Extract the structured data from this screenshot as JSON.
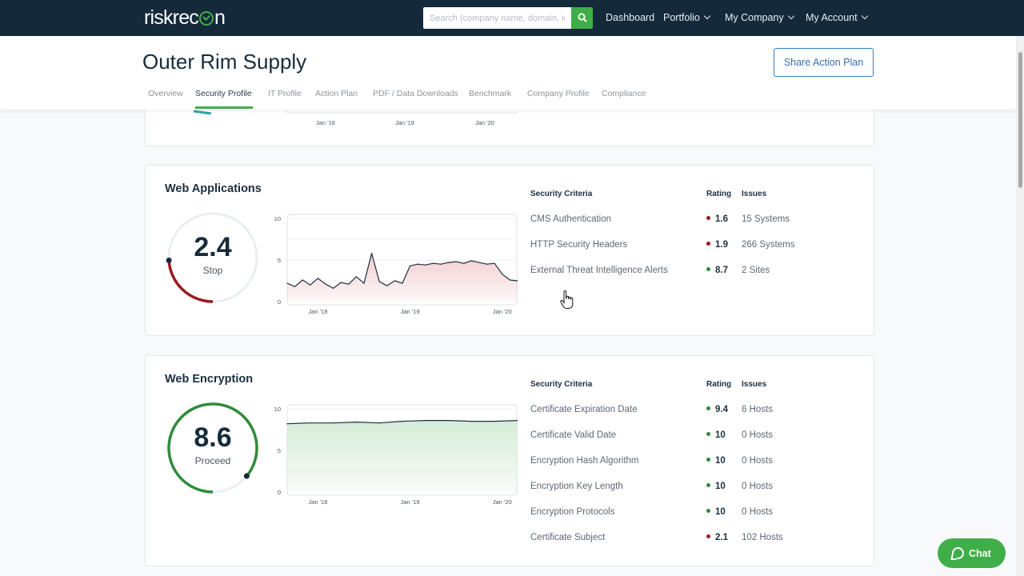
{
  "app": {
    "logo": "riskrecon"
  },
  "topnav": {
    "search_placeholder": "Search (company name, domain, id)",
    "dashboard": "Dashboard",
    "portfolio": "Portfolio",
    "my_company": "My Company",
    "my_account": "My Account"
  },
  "header": {
    "company_name": "Outer Rim Supply",
    "share_button": "Share Action Plan",
    "tabs": [
      {
        "label": "Overview"
      },
      {
        "label": "Security Profile",
        "active": true
      },
      {
        "label": "IT Profile"
      },
      {
        "label": "Action Plan"
      },
      {
        "label": "PDF / Data Downloads"
      },
      {
        "label": "Benchmark"
      },
      {
        "label": "Company Profile"
      },
      {
        "label": "Compliance"
      }
    ]
  },
  "table_headers": {
    "criteria": "Security Criteria",
    "rating": "Rating",
    "issues": "Issues"
  },
  "prev_card": {
    "x_ticks": [
      "Jan '18",
      "Jan '19",
      "Jan '20"
    ]
  },
  "web_applications": {
    "title": "Web Applications",
    "score": "2.4",
    "score_value": 2.4,
    "verdict": "Stop",
    "rows": [
      {
        "criteria": "CMS Authentication",
        "rating": "1.6",
        "status": "bad",
        "issues": "15 Systems"
      },
      {
        "criteria": "HTTP Security Headers",
        "rating": "1.9",
        "status": "bad",
        "issues": "266 Systems"
      },
      {
        "criteria": "External Threat Intelligence Alerts",
        "rating": "8.7",
        "status": "good",
        "issues": "2 Sites"
      }
    ]
  },
  "web_encryption": {
    "title": "Web Encryption",
    "score": "8.6",
    "score_value": 8.6,
    "verdict": "Proceed",
    "rows": [
      {
        "criteria": "Certificate Expiration Date",
        "rating": "9.4",
        "status": "good",
        "issues": "6 Hosts"
      },
      {
        "criteria": "Certificate Valid Date",
        "rating": "10",
        "status": "good",
        "issues": "0 Hosts"
      },
      {
        "criteria": "Encryption Hash Algorithm",
        "rating": "10",
        "status": "good",
        "issues": "0 Hosts"
      },
      {
        "criteria": "Encryption Key Length",
        "rating": "10",
        "status": "good",
        "issues": "0 Hosts"
      },
      {
        "criteria": "Encryption Protocols",
        "rating": "10",
        "status": "good",
        "issues": "0 Hosts"
      },
      {
        "criteria": "Certificate Subject",
        "rating": "2.1",
        "status": "bad",
        "issues": "102 Hosts"
      }
    ]
  },
  "chart_data": [
    {
      "type": "area",
      "y_ticks": [
        "10",
        "5",
        "0"
      ],
      "x_ticks": [
        "Jan '18",
        "Jan '19",
        "Jan '20"
      ],
      "ylim": [
        0,
        10
      ],
      "x": [
        "2017-09",
        "2017-10",
        "2017-11",
        "2017-12",
        "2018-01",
        "2018-02",
        "2018-03",
        "2018-04",
        "2018-05",
        "2018-06",
        "2018-07",
        "2018-08",
        "2018-09",
        "2018-10",
        "2018-11",
        "2018-12",
        "2019-01",
        "2019-02",
        "2019-03",
        "2019-04",
        "2019-05",
        "2019-06",
        "2019-07",
        "2019-08",
        "2019-09",
        "2019-10",
        "2019-11",
        "2019-12",
        "2020-01",
        "2020-02",
        "2020-03"
      ],
      "values": [
        2.2,
        1.8,
        2.6,
        2.0,
        2.8,
        2.1,
        1.6,
        2.3,
        2.1,
        3.0,
        2.2,
        5.8,
        2.4,
        1.9,
        2.5,
        2.2,
        4.3,
        4.5,
        4.4,
        4.6,
        4.5,
        4.7,
        4.8,
        4.6,
        4.9,
        4.7,
        4.5,
        4.6,
        3.3,
        2.6,
        2.5
      ],
      "fill": "#f2cdd0",
      "line": "#1c2f3e"
    },
    {
      "type": "area",
      "y_ticks": [
        "10",
        "5",
        "0"
      ],
      "x_ticks": [
        "Jan '18",
        "Jan '19",
        "Jan '20"
      ],
      "ylim": [
        0,
        10
      ],
      "x": [
        "2017-09",
        "2017-12",
        "2018-03",
        "2018-06",
        "2018-09",
        "2018-12",
        "2019-03",
        "2019-06",
        "2019-09",
        "2019-12",
        "2020-03"
      ],
      "values": [
        8.2,
        8.3,
        8.3,
        8.4,
        8.3,
        8.5,
        8.6,
        8.6,
        8.5,
        8.5,
        8.6
      ],
      "fill": "#d5ecd6",
      "line": "#1c2f3e"
    }
  ],
  "colors": {
    "good": "#2e8b3a",
    "bad": "#9a1a1f",
    "brand_green": "#3fae49",
    "nav_bg": "#14293a"
  },
  "chat": {
    "label": "Chat"
  }
}
